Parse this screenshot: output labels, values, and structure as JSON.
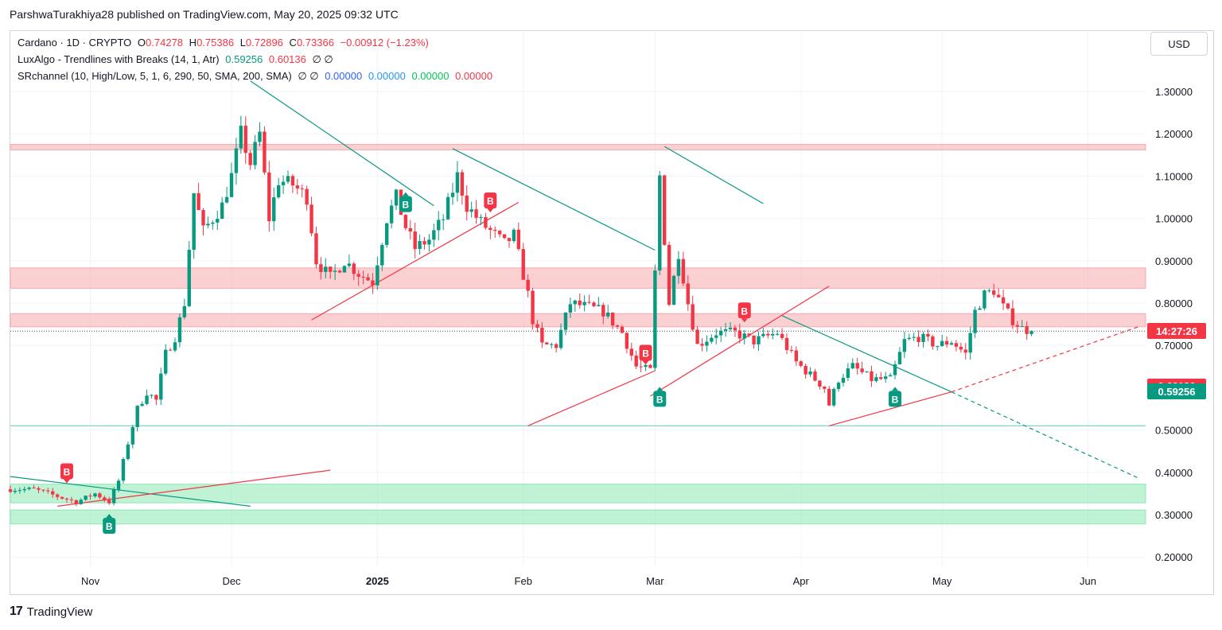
{
  "header": {
    "publisher": "ParshwaTurakhiya28 published on TradingView.com, May 20, 2025 09:32 UTC"
  },
  "legend": {
    "symbol": "Cardano · 1D · CRYPTO",
    "open_label": "O",
    "open": "0.74278",
    "high_label": "H",
    "high": "0.75386",
    "low_label": "L",
    "low": "0.72896",
    "close_label": "C",
    "close": "0.73366",
    "change": "−0.00912 (−1.23%)",
    "ind1_name": "LuxAlgo - Trendlines with Breaks (14, 1, Atr)",
    "ind1_v1": "0.59256",
    "ind1_v2": "0.60136",
    "ind1_null": "∅ ∅",
    "ind2_name": "SRchannel (10, High/Low, 5, 1, 6, 290, 50, SMA, 200, SMA)",
    "ind2_null": "∅ ∅",
    "ind2_v1": "0.00000",
    "ind2_v2": "0.00000",
    "ind2_v3": "0.00000",
    "ind2_v4": "0.00000"
  },
  "price_scale": {
    "currency": "USD",
    "countdown_label": "14:27:26",
    "upper_trend_label": "0.60136",
    "lower_trend_label": "0.59256"
  },
  "colors": {
    "up": "#089981",
    "down": "#f23645",
    "resistance_zone": "#f7a9ad",
    "support_zone": "#8de8b4",
    "trend_up": "#f23645",
    "trend_down": "#089981"
  },
  "brand": {
    "name": "TradingView"
  },
  "chart_data": {
    "type": "candlestick",
    "title": "Cardano · 1D · CRYPTO",
    "ylim": [
      0.16,
      1.36
    ],
    "y_ticks": [
      "1.30000",
      "1.20000",
      "1.10000",
      "1.00000",
      "0.90000",
      "0.80000",
      "0.70000",
      "0.50000",
      "0.40000",
      "0.30000",
      "0.20000"
    ],
    "x_ticks": [
      {
        "label": "Nov",
        "date": "2024-11-01",
        "bold": false
      },
      {
        "label": "Dec",
        "date": "2024-12-01",
        "bold": false
      },
      {
        "label": "2025",
        "date": "2025-01-01",
        "bold": true
      },
      {
        "label": "Feb",
        "date": "2025-02-01",
        "bold": false
      },
      {
        "label": "Mar",
        "date": "2025-03-01",
        "bold": false
      },
      {
        "label": "Apr",
        "date": "2025-04-01",
        "bold": false
      },
      {
        "label": "May",
        "date": "2025-05-01",
        "bold": false
      },
      {
        "label": "Jun",
        "date": "2025-06-01",
        "bold": false
      }
    ],
    "price_path": [
      [
        "2024-10-15",
        0.36
      ],
      [
        "2024-10-20",
        0.36
      ],
      [
        "2024-10-26",
        0.34
      ],
      [
        "2024-10-29",
        0.33
      ],
      [
        "2024-11-02",
        0.35
      ],
      [
        "2024-11-05",
        0.33
      ],
      [
        "2024-11-07",
        0.38
      ],
      [
        "2024-11-09",
        0.47
      ],
      [
        "2024-11-11",
        0.55
      ],
      [
        "2024-11-13",
        0.59
      ],
      [
        "2024-11-15",
        0.57
      ],
      [
        "2024-11-17",
        0.68
      ],
      [
        "2024-11-19",
        0.72
      ],
      [
        "2024-11-21",
        0.8
      ],
      [
        "2024-11-23",
        1.06
      ],
      [
        "2024-11-25",
        0.97
      ],
      [
        "2024-11-27",
        1.0
      ],
      [
        "2024-11-29",
        1.03
      ],
      [
        "2024-12-01",
        1.1
      ],
      [
        "2024-12-03",
        1.2
      ],
      [
        "2024-12-05",
        1.13
      ],
      [
        "2024-12-07",
        1.2
      ],
      [
        "2024-12-09",
        1.0
      ],
      [
        "2024-12-11",
        1.09
      ],
      [
        "2024-12-14",
        1.08
      ],
      [
        "2024-12-17",
        1.05
      ],
      [
        "2024-12-19",
        0.9
      ],
      [
        "2024-12-22",
        0.86
      ],
      [
        "2024-12-25",
        0.9
      ],
      [
        "2024-12-28",
        0.87
      ],
      [
        "2024-12-31",
        0.85
      ],
      [
        "2025-01-03",
        1.0
      ],
      [
        "2025-01-05",
        1.05
      ],
      [
        "2025-01-07",
        0.98
      ],
      [
        "2025-01-09",
        0.93
      ],
      [
        "2025-01-12",
        0.95
      ],
      [
        "2025-01-15",
        1.0
      ],
      [
        "2025-01-18",
        1.1
      ],
      [
        "2025-01-20",
        1.03
      ],
      [
        "2025-01-23",
        0.99
      ],
      [
        "2025-01-26",
        0.96
      ],
      [
        "2025-01-28",
        0.94
      ],
      [
        "2025-01-30",
        0.96
      ],
      [
        "2025-02-02",
        0.82
      ],
      [
        "2025-02-03",
        0.76
      ],
      [
        "2025-02-05",
        0.7
      ],
      [
        "2025-02-08",
        0.7
      ],
      [
        "2025-02-11",
        0.8
      ],
      [
        "2025-02-15",
        0.79
      ],
      [
        "2025-02-18",
        0.78
      ],
      [
        "2025-02-22",
        0.73
      ],
      [
        "2025-02-25",
        0.65
      ],
      [
        "2025-02-28",
        0.64
      ],
      [
        "2025-03-02",
        1.1
      ],
      [
        "2025-03-04",
        0.8
      ],
      [
        "2025-03-06",
        0.92
      ],
      [
        "2025-03-08",
        0.8
      ],
      [
        "2025-03-10",
        0.7
      ],
      [
        "2025-03-14",
        0.73
      ],
      [
        "2025-03-18",
        0.73
      ],
      [
        "2025-03-22",
        0.71
      ],
      [
        "2025-03-27",
        0.73
      ],
      [
        "2025-03-31",
        0.66
      ],
      [
        "2025-04-03",
        0.63
      ],
      [
        "2025-04-06",
        0.6
      ],
      [
        "2025-04-07",
        0.56
      ],
      [
        "2025-04-09",
        0.62
      ],
      [
        "2025-04-12",
        0.65
      ],
      [
        "2025-04-16",
        0.62
      ],
      [
        "2025-04-20",
        0.62
      ],
      [
        "2025-04-23",
        0.71
      ],
      [
        "2025-04-26",
        0.72
      ],
      [
        "2025-04-30",
        0.7
      ],
      [
        "2025-05-03",
        0.71
      ],
      [
        "2025-05-06",
        0.68
      ],
      [
        "2025-05-08",
        0.78
      ],
      [
        "2025-05-10",
        0.82
      ],
      [
        "2025-05-12",
        0.83
      ],
      [
        "2025-05-14",
        0.79
      ],
      [
        "2025-05-16",
        0.76
      ],
      [
        "2025-05-18",
        0.74
      ],
      [
        "2025-05-20",
        0.7337
      ]
    ],
    "zones": [
      {
        "type": "resistance",
        "from": 1.162,
        "to": 1.175
      },
      {
        "type": "resistance",
        "from": 0.835,
        "to": 0.883
      },
      {
        "type": "resistance",
        "from": 0.744,
        "to": 0.775
      },
      {
        "type": "support",
        "from": 0.328,
        "to": 0.372
      },
      {
        "type": "support",
        "from": 0.278,
        "to": 0.311
      }
    ],
    "horizontal_lines": [
      {
        "y": 0.51,
        "style": "solid",
        "color": "#089981"
      },
      {
        "y": 0.7337,
        "style": "dotted",
        "color": "#131722"
      }
    ],
    "trendlines": [
      {
        "kind": "down",
        "x1": "2024-10-15",
        "y1": 0.39,
        "x2": "2024-12-05",
        "y2": 0.32
      },
      {
        "kind": "up",
        "x1": "2024-10-25",
        "y1": 0.32,
        "x2": "2024-12-22",
        "y2": 0.405
      },
      {
        "kind": "down",
        "x1": "2024-12-05",
        "y1": 1.325,
        "x2": "2025-01-13",
        "y2": 1.03
      },
      {
        "kind": "down",
        "x1": "2025-01-17",
        "y1": 1.165,
        "x2": "2025-03-01",
        "y2": 0.925
      },
      {
        "kind": "down",
        "x1": "2025-03-03",
        "y1": 1.17,
        "x2": "2025-03-24",
        "y2": 1.035
      },
      {
        "kind": "up",
        "x1": "2024-12-18",
        "y1": 0.76,
        "x2": "2025-01-31",
        "y2": 1.038
      },
      {
        "kind": "up",
        "x1": "2025-02-02",
        "y1": 0.51,
        "x2": "2025-03-01",
        "y2": 0.64
      },
      {
        "kind": "up",
        "x1": "2025-02-28",
        "y1": 0.58,
        "x2": "2025-04-07",
        "y2": 0.84
      },
      {
        "kind": "down",
        "x1": "2025-03-28",
        "y1": 0.77,
        "x2": "2025-05-03",
        "y2": 0.59
      },
      {
        "kind": "down_ext",
        "x1": "2025-05-03",
        "y1": 0.59,
        "x2": "2025-06-12",
        "y2": 0.385
      },
      {
        "kind": "up",
        "x1": "2025-04-07",
        "y1": 0.51,
        "x2": "2025-05-03",
        "y2": 0.59
      },
      {
        "kind": "up_ext",
        "x1": "2025-05-03",
        "y1": 0.59,
        "x2": "2025-06-12",
        "y2": 0.745
      }
    ],
    "break_markers": [
      {
        "label": "B",
        "date": "2024-10-27",
        "price": 0.38,
        "color": "down",
        "side": "above"
      },
      {
        "label": "B",
        "date": "2024-11-05",
        "price": 0.3,
        "color": "up",
        "side": "below"
      },
      {
        "label": "B",
        "date": "2025-01-07",
        "price": 1.06,
        "color": "up",
        "side": "below"
      },
      {
        "label": "B",
        "date": "2025-01-25",
        "price": 1.02,
        "color": "down",
        "side": "above"
      },
      {
        "label": "B",
        "date": "2025-02-27",
        "price": 0.66,
        "color": "down",
        "side": "above"
      },
      {
        "label": "B",
        "date": "2025-03-02",
        "price": 0.6,
        "color": "up",
        "side": "below"
      },
      {
        "label": "B",
        "date": "2025-03-20",
        "price": 0.76,
        "color": "down",
        "side": "above"
      },
      {
        "label": "B",
        "date": "2025-04-21",
        "price": 0.6,
        "color": "up",
        "side": "below"
      }
    ]
  }
}
